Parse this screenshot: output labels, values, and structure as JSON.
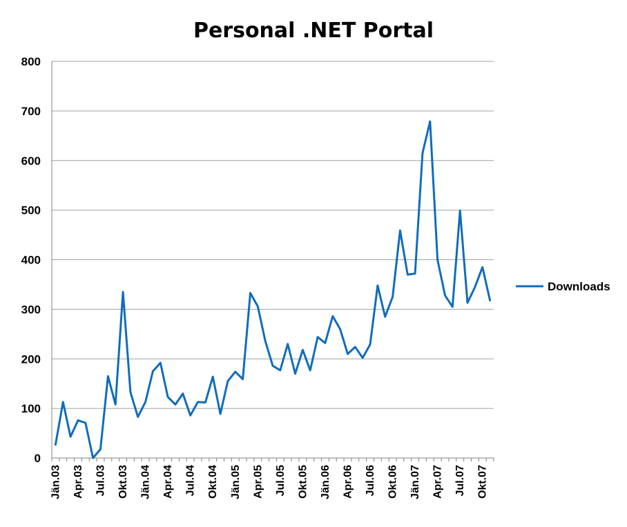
{
  "chart_data": {
    "type": "line",
    "title": "Personal .NET Portal",
    "xlabel": "",
    "ylabel": "",
    "ylim": [
      0,
      800
    ],
    "yticks": [
      0,
      100,
      200,
      300,
      400,
      500,
      600,
      700,
      800
    ],
    "grid": true,
    "legend_position": "right",
    "x_tick_labels": [
      "Jän.03",
      "Apr.03",
      "Jul.03",
      "Okt.03",
      "Jän.04",
      "Apr.04",
      "Jul.04",
      "Okt.04",
      "Jän.05",
      "Apr.05",
      "Jul.05",
      "Okt.05",
      "Jän.06",
      "Apr.06",
      "Jul.06",
      "Okt.06",
      "Jän.07",
      "Apr.07",
      "Jul.07",
      "Okt.07"
    ],
    "categories": [
      "Jän.03",
      "Feb.03",
      "Mär.03",
      "Apr.03",
      "Mai.03",
      "Jun.03",
      "Jul.03",
      "Aug.03",
      "Sep.03",
      "Okt.03",
      "Nov.03",
      "Dez.03",
      "Jän.04",
      "Feb.04",
      "Mär.04",
      "Apr.04",
      "Mai.04",
      "Jun.04",
      "Jul.04",
      "Aug.04",
      "Sep.04",
      "Okt.04",
      "Nov.04",
      "Dez.04",
      "Jän.05",
      "Feb.05",
      "Mär.05",
      "Apr.05",
      "Mai.05",
      "Jun.05",
      "Jul.05",
      "Aug.05",
      "Sep.05",
      "Okt.05",
      "Nov.05",
      "Dez.05",
      "Jän.06",
      "Feb.06",
      "Mär.06",
      "Apr.06",
      "Mai.06",
      "Jun.06",
      "Jul.06",
      "Aug.06",
      "Sep.06",
      "Okt.06",
      "Nov.06",
      "Dez.06",
      "Jän.07",
      "Feb.07",
      "Mär.07",
      "Apr.07",
      "Mai.07",
      "Jun.07",
      "Jul.07",
      "Aug.07",
      "Sep.07",
      "Okt.07",
      "Nov.07"
    ],
    "series": [
      {
        "name": "Downloads",
        "color": "#0f6cbd",
        "values": [
          27,
          113,
          43,
          76,
          71,
          0,
          18,
          165,
          108,
          335,
          133,
          83,
          113,
          175,
          192,
          123,
          108,
          130,
          86,
          113,
          112,
          164,
          89,
          155,
          174,
          159,
          333,
          306,
          236,
          186,
          177,
          230,
          170,
          218,
          177,
          244,
          232,
          286,
          260,
          210,
          224,
          202,
          229,
          348,
          285,
          325,
          459,
          370,
          372,
          615,
          679,
          400,
          328,
          305,
          499,
          313,
          345,
          385,
          318
        ]
      }
    ]
  }
}
